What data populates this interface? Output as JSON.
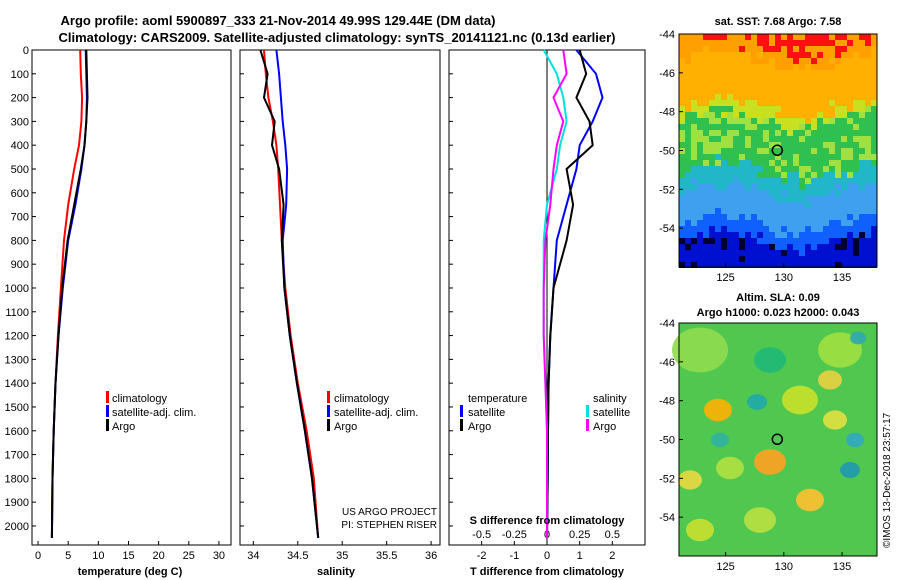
{
  "title_line1": "Argo profile: aoml 5900897_333 21-Nov-2014 49.99S 129.44E (DM data)",
  "title_line2": "Climatology: CARS2009. Satellite-adjusted climatology: synTS_20141121.nc (0.13d earlier)",
  "colors": {
    "climatology": "#ff0000",
    "satellite": "#0000ff",
    "argo": "#000000",
    "sat_salinity": "#00e0e0",
    "argo_salinity": "#ff00ff"
  },
  "chart_data": [
    {
      "type": "line",
      "xlabel": "temperature (deg C)",
      "xlim": [
        -1,
        32
      ],
      "xticks": [
        "0",
        "5",
        "10",
        "15",
        "20",
        "25",
        "30"
      ],
      "ylim": [
        0,
        2080
      ],
      "yticks": [
        "0",
        "100",
        "200",
        "300",
        "400",
        "500",
        "600",
        "700",
        "800",
        "900",
        "1000",
        "1100",
        "1200",
        "1300",
        "1400",
        "1500",
        "1600",
        "1700",
        "1800",
        "1900",
        "2000"
      ],
      "legend": [
        "climatology",
        "satellite-adj. clim.",
        "Argo"
      ],
      "series": [
        {
          "name": "climatology",
          "color": "#ff0000",
          "x": [
            7.0,
            7.1,
            7.3,
            7.2,
            6.8,
            6.0,
            5.0,
            4.3,
            3.8,
            3.3,
            2.9,
            2.6,
            2.4,
            2.3
          ],
          "y": [
            0,
            100,
            200,
            300,
            400,
            500,
            650,
            800,
            1000,
            1200,
            1400,
            1600,
            1800,
            2050
          ]
        },
        {
          "name": "satellite-adj. clim.",
          "color": "#0000ff",
          "x": [
            7.9,
            8.0,
            8.1,
            8.0,
            7.7,
            7.2,
            6.2,
            5.0,
            4.1,
            3.4,
            2.9,
            2.6,
            2.4,
            2.3
          ],
          "y": [
            0,
            100,
            200,
            300,
            400,
            500,
            650,
            800,
            1000,
            1200,
            1400,
            1600,
            1800,
            2050
          ]
        },
        {
          "name": "Argo",
          "color": "#000000",
          "x": [
            8.0,
            8.1,
            8.2,
            8.0,
            7.7,
            7.1,
            6.0,
            4.9,
            4.0,
            3.4,
            2.9,
            2.6,
            2.4,
            2.3
          ],
          "y": [
            0,
            100,
            200,
            300,
            400,
            500,
            650,
            800,
            1000,
            1200,
            1400,
            1600,
            1800,
            2050
          ]
        }
      ]
    },
    {
      "type": "line",
      "xlabel": "salinity",
      "xlim": [
        33.85,
        36.1
      ],
      "xticks": [
        "34",
        "34.5",
        "35",
        "35.5",
        "36"
      ],
      "ylim": [
        0,
        2080
      ],
      "legend": [
        "climatology",
        "satellite-adj. clim.",
        "Argo"
      ],
      "annotation": [
        "US ARGO PROJECT",
        "PI: STEPHEN RISER"
      ],
      "series": [
        {
          "name": "climatology",
          "color": "#ff0000",
          "x": [
            34.12,
            34.14,
            34.17,
            34.22,
            34.26,
            34.28,
            34.3,
            34.32,
            34.36,
            34.42,
            34.5,
            34.6,
            34.68,
            34.73
          ],
          "y": [
            0,
            100,
            200,
            300,
            400,
            500,
            650,
            800,
            1000,
            1200,
            1400,
            1600,
            1800,
            2050
          ]
        },
        {
          "name": "satellite-adj. clim.",
          "color": "#0000ff",
          "x": [
            34.26,
            34.29,
            34.31,
            34.33,
            34.36,
            34.38,
            34.37,
            34.33,
            34.35,
            34.41,
            34.49,
            34.58,
            34.66,
            34.73
          ],
          "y": [
            0,
            100,
            200,
            300,
            400,
            500,
            650,
            800,
            1000,
            1200,
            1400,
            1600,
            1800,
            2050
          ]
        },
        {
          "name": "Argo",
          "color": "#000000",
          "x": [
            34.08,
            34.16,
            34.12,
            34.24,
            34.21,
            34.29,
            34.34,
            34.32,
            34.35,
            34.41,
            34.49,
            34.58,
            34.66,
            34.73
          ],
          "y": [
            0,
            100,
            200,
            300,
            400,
            500,
            650,
            800,
            1000,
            1200,
            1400,
            1600,
            1800,
            2050
          ]
        }
      ]
    },
    {
      "type": "line",
      "xlabel": "T difference from climatology",
      "xlim": [
        -3.0,
        3.0
      ],
      "xticks": [
        "-2",
        "-1",
        "0",
        "1",
        "2"
      ],
      "secondary_xlabel": "S difference from climatology",
      "secondary_xticks": [
        "-0.5",
        "-0.25",
        "0",
        "0.25",
        "0.5"
      ],
      "ylim": [
        0,
        2080
      ],
      "legend_temperature": [
        "temperature",
        "satellite",
        "Argo"
      ],
      "legend_salinity": [
        "salinity",
        "satellite",
        "Argo"
      ],
      "series": [
        {
          "name": "temperature satellite",
          "color": "#0000ff",
          "x": [
            0.9,
            1.5,
            1.7,
            1.4,
            1.0,
            0.9,
            0.6,
            0.3,
            0.2,
            0.1,
            0.05,
            0.03,
            0.02,
            0.0
          ],
          "y": [
            0,
            100,
            200,
            300,
            400,
            500,
            650,
            800,
            1000,
            1200,
            1400,
            1600,
            1800,
            2050
          ]
        },
        {
          "name": "temperature Argo",
          "color": "#000000",
          "x": [
            1.0,
            1.2,
            0.9,
            1.3,
            1.4,
            0.6,
            0.8,
            0.6,
            0.2,
            0.1,
            0.05,
            0.03,
            0.02,
            0.0
          ],
          "y": [
            0,
            100,
            200,
            300,
            400,
            500,
            650,
            800,
            1000,
            1200,
            1400,
            1600,
            1800,
            2050
          ]
        },
        {
          "name": "salinity satellite",
          "color": "#00e0e0",
          "x": [
            -0.1,
            0.3,
            0.5,
            0.6,
            0.4,
            0.3,
            0.0,
            -0.1,
            -0.1,
            -0.1,
            -0.05,
            0.0,
            0.0,
            0.0
          ],
          "y": [
            0,
            100,
            200,
            300,
            400,
            500,
            650,
            800,
            1000,
            1200,
            1400,
            1600,
            1800,
            2050
          ]
        },
        {
          "name": "salinity Argo",
          "color": "#ff00ff",
          "x": [
            0.5,
            0.6,
            0.2,
            0.5,
            0.3,
            0.2,
            0.1,
            -0.05,
            -0.1,
            -0.1,
            -0.05,
            0.0,
            0.0,
            0.0
          ],
          "y": [
            0,
            100,
            200,
            300,
            400,
            500,
            650,
            800,
            1000,
            1200,
            1400,
            1600,
            1800,
            2050
          ]
        }
      ]
    },
    {
      "type": "heatmap",
      "title": "sat. SST: 7.68 Argo: 7.58",
      "xlim": [
        121,
        138
      ],
      "ylim": [
        -56,
        -44
      ],
      "xticks": [
        "125",
        "130",
        "135"
      ],
      "yticks": [
        "-44",
        "-46",
        "-48",
        "-50",
        "-52",
        "-54"
      ],
      "marker": {
        "lon": 129.44,
        "lat": -49.99
      }
    },
    {
      "type": "heatmap",
      "title": [
        "Altim. SLA: 0.09",
        "Argo h1000: 0.023 h2000: 0.043"
      ],
      "xlim": [
        121,
        138
      ],
      "ylim": [
        -56,
        -44
      ],
      "xticks": [
        "125",
        "130",
        "135"
      ],
      "yticks": [
        "-44",
        "-46",
        "-48",
        "-50",
        "-52",
        "-54"
      ],
      "marker": {
        "lon": 129.44,
        "lat": -49.99
      }
    }
  ],
  "side_credit": "©IMOS 13-Dec-2018 23:57:17"
}
